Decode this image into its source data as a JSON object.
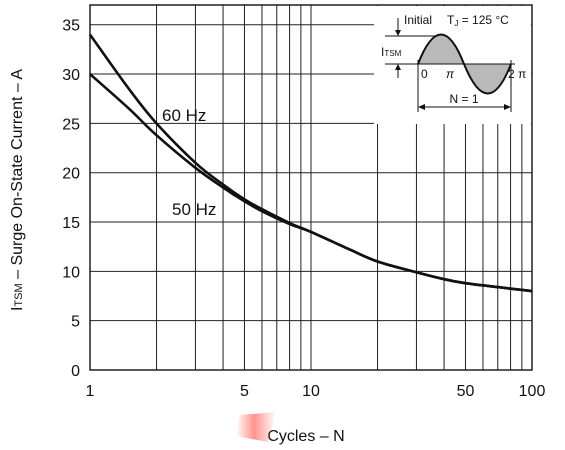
{
  "chart_data": {
    "type": "line",
    "x_scale": "log",
    "xlim": [
      1,
      100
    ],
    "ylim": [
      0,
      37
    ],
    "xlabel": "Cycles – N",
    "ylabel_prefix": "I",
    "ylabel_sub": "TSM",
    "ylabel_rest": " – Surge On-State Current – A",
    "x_ticks": [
      {
        "value": 1,
        "label": "1"
      },
      {
        "value": 5,
        "label": "5"
      },
      {
        "value": 10,
        "label": "10"
      },
      {
        "value": 50,
        "label": "50"
      },
      {
        "value": 100,
        "label": "100"
      }
    ],
    "y_ticks": [
      {
        "value": 0,
        "label": "0"
      },
      {
        "value": 5,
        "label": "5"
      },
      {
        "value": 10,
        "label": "10"
      },
      {
        "value": 15,
        "label": "15"
      },
      {
        "value": 20,
        "label": "20"
      },
      {
        "value": 25,
        "label": "25"
      },
      {
        "value": 30,
        "label": "30"
      },
      {
        "value": 35,
        "label": "35"
      }
    ],
    "grid": true,
    "series": [
      {
        "name": "60 Hz",
        "x": [
          1,
          1.5,
          2,
          3,
          4,
          5,
          6,
          8,
          10,
          15,
          20,
          30,
          40,
          50,
          70,
          100
        ],
        "y": [
          34,
          28.5,
          25,
          21,
          18.8,
          17.3,
          16.3,
          14.9,
          14,
          12.2,
          11,
          9.9,
          9.2,
          8.8,
          8.4,
          8.0
        ]
      },
      {
        "name": "50 Hz",
        "x": [
          1,
          1.5,
          2,
          3,
          4,
          5,
          6,
          8,
          10,
          15,
          20,
          30,
          40,
          50,
          70,
          100
        ],
        "y": [
          30,
          26.5,
          23.8,
          20.5,
          18.5,
          17.1,
          16.1,
          14.8,
          14,
          12.2,
          11,
          9.9,
          9.2,
          8.8,
          8.4,
          8.0
        ]
      }
    ],
    "inset": {
      "initial": "Initial",
      "tj_prefix": "T",
      "tj_sub": "J",
      "tj_value": " = 125 °C",
      "itsm_prefix": "I",
      "itsm_sub": "TSM",
      "zero": "0",
      "pi": "π",
      "two_pi": "2 π",
      "n_label": "N = 1"
    }
  }
}
